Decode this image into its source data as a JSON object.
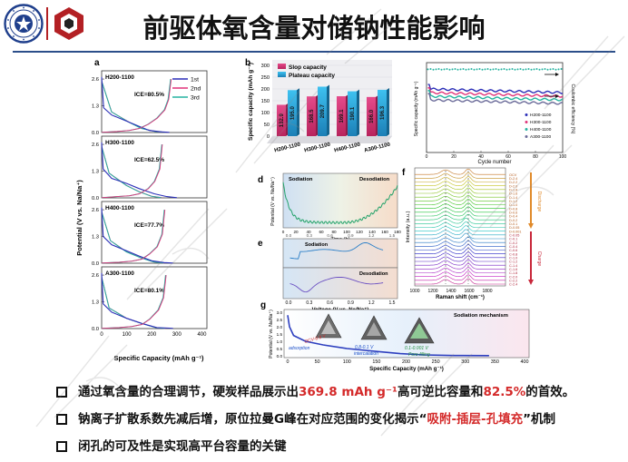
{
  "title": "前驱体氧含量对储钠性能影响",
  "panel_letters": {
    "a": "a",
    "b": "b",
    "d": "d",
    "e": "e",
    "f": "f",
    "g": "g"
  },
  "panel_a": {
    "ylabel": "Potential (V vs. Na/Na⁺)",
    "xlabel": "Specific Capacity (mAh g⁻¹)",
    "xticks": [
      "0",
      "100",
      "200",
      "300",
      "400"
    ],
    "legend": [
      "1st",
      "2nd",
      "3rd"
    ],
    "colors": [
      "#2b2fb8",
      "#e0347a",
      "#25b3a0"
    ],
    "panels": [
      {
        "name": "H200-1100",
        "ice": "ICE=80.5%",
        "yticks": [
          "0.0",
          "1.3",
          "2.6"
        ]
      },
      {
        "name": "H300-1100",
        "ice": "ICE=62.5%",
        "yticks": [
          "0.0",
          "1.3",
          "2.6"
        ]
      },
      {
        "name": "H400-1100",
        "ice": "ICE=77.7%",
        "yticks": [
          "0.0",
          "1.3",
          "2.6"
        ]
      },
      {
        "name": "A300-1100",
        "ice": "ICE=80.1%",
        "yticks": [
          "0.0",
          "1.3",
          "2.6"
        ]
      }
    ]
  },
  "chart_data": [
    {
      "type": "bar",
      "ylabel": "Specific capacity (mAh g⁻¹)",
      "categories": [
        "H200-1100",
        "H300-1100",
        "H400-1100",
        "A300-1100"
      ],
      "yticks": [
        "0",
        "50",
        "100",
        "150",
        "200",
        "250",
        "300"
      ],
      "ylim": [
        0,
        300
      ],
      "series": [
        {
          "name": "Slop capacity",
          "values": [
            132.9,
            168.5,
            169.1,
            166.0
          ],
          "color": "#e0347a"
        },
        {
          "name": "Plateau capacity",
          "values": [
            195.0,
            209.7,
            190.1,
            196.3
          ],
          "color": "#2aa5d8"
        }
      ],
      "value_labels": [
        [
          "132.9",
          "168.5",
          "169.1",
          "166.0"
        ],
        [
          "195.0",
          "209.7",
          "190.1",
          "196.3"
        ]
      ]
    },
    {
      "type": "line",
      "xlabel": "Cycle number",
      "ylabel": "Specific capacity (mAh g⁻¹)",
      "y2label": "Coulombic efficiency (%)",
      "xticks": [
        "0",
        "20",
        "40",
        "60",
        "80",
        "100"
      ],
      "xlim": [
        0,
        100
      ],
      "legend": [
        "H200-1100",
        "H300-1100",
        "H400-1100",
        "A300-1100"
      ],
      "colors": [
        "#2b2fb8",
        "#e0347a",
        "#25b3a0",
        "#6c6c9a"
      ]
    }
  ],
  "panel_d": {
    "ylabel": "Potential (V vs. Na/Na⁺)",
    "xlabel": "Time (h)",
    "xticks": [
      "0",
      "20",
      "40",
      "60",
      "80",
      "100",
      "120",
      "140",
      "160",
      "180"
    ],
    "sodiation": "Sodiation",
    "desodiation": "Desodiation"
  },
  "panel_e": {
    "xlabel": "Voltage (V vs. Na/Na⁺)",
    "xticks": [
      "0.0",
      "0.3",
      "0.6",
      "0.9",
      "1.2",
      "1.5"
    ],
    "sodiation": "Sodiation",
    "desodiation": "Desodiation"
  },
  "panel_f": {
    "xlabel": "Raman shift (cm⁻¹)",
    "ylabel": "Intensity (a.u.)",
    "xticks": [
      "1000",
      "1200",
      "1400",
      "1600",
      "1800"
    ],
    "discharge": "Discharge",
    "charge": "Charge",
    "states": [
      "OCV",
      "D-2.4",
      "D-2.2",
      "D-2.0",
      "D-1.8",
      "D-1.6",
      "D-1.4",
      "D-1.2",
      "D-1.0",
      "D-0.8",
      "D-0.6",
      "D-0.4",
      "D-0.2",
      "D-0.1",
      "D-0.05",
      "D-0.001",
      "C-0.05",
      "C-0.1",
      "C-0.2",
      "C-0.4",
      "C-0.6",
      "C-0.8",
      "C-1.0",
      "C-1.2",
      "C-1.4",
      "C-1.6",
      "C-1.8",
      "C-2.0",
      "C-2.2",
      "C-2.4"
    ]
  },
  "panel_g": {
    "title": "Sodiation mechanism",
    "ylabel": "Potential (V vs. Na/Na⁺)",
    "xlabel": "Specific Capacity (mAh g⁻¹)",
    "xticks": [
      "0",
      "50",
      "100",
      "150",
      "200",
      "250",
      "300",
      "350",
      "400"
    ],
    "yticks": [
      "0.0",
      "0.5",
      "1.0",
      "1.5",
      "2.0",
      "2.5",
      "3.0"
    ],
    "labels": [
      "OCV-0.8 V",
      "adsorption",
      "0.8-0.1 V",
      "intercalation",
      "0.1-0.001 V",
      "Pore-filling"
    ]
  },
  "bullets": {
    "b1": {
      "pre": "通过氧含量的合理调节，硬炭样品展示出",
      "hl1": "369.8 mAh g⁻¹",
      "mid": "高可逆比容量和",
      "hl2": "82.5%",
      "post": "的首效。"
    },
    "b2": {
      "pre": "钠离子扩散系数先减后增，原位拉曼G峰在对应范围的变化揭示“",
      "hl": "吸附-插层-孔填充",
      "post": "”机制"
    },
    "b3": {
      "text": "闭孔的可及性是实现高平台容量的关键"
    }
  },
  "colors": {
    "accent_red": "#d42a2a",
    "rule_blue": "#2c4f8a",
    "logo_red": "#b32024"
  },
  "icons": {
    "logo_left": "university-seal-icon",
    "logo_right": "institute-hex-logo-icon"
  }
}
